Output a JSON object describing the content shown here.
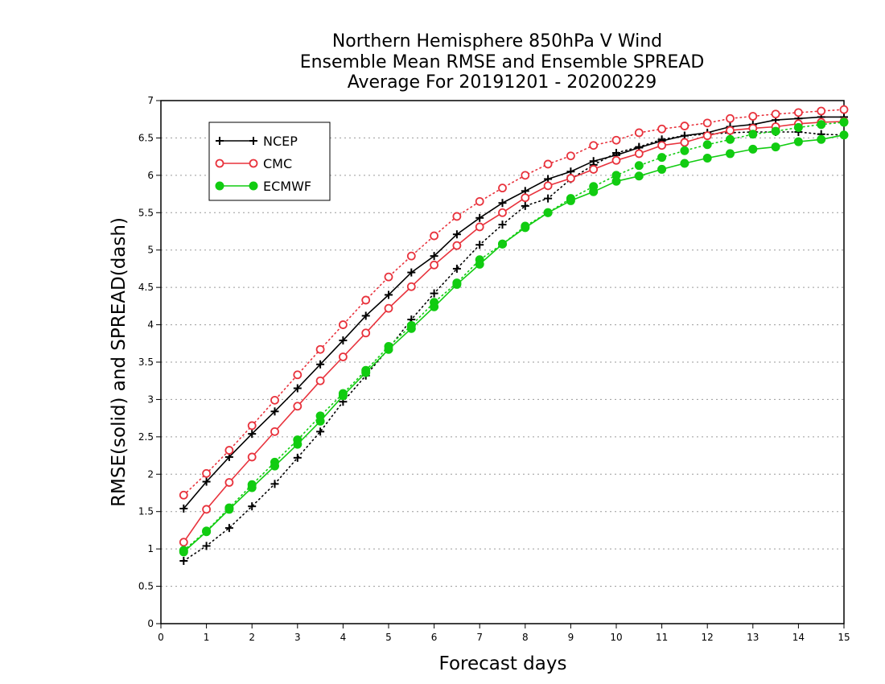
{
  "chart_data": {
    "type": "line",
    "title_lines": [
      "Northern Hemisphere 850hPa V Wind",
      "Ensemble Mean RMSE and Ensemble SPREAD",
      "Average For 20191201 - 20200229"
    ],
    "xlabel": "Forecast days",
    "ylabel": "RMSE(solid) and SPREAD(dash)",
    "xlim": [
      0,
      15
    ],
    "ylim": [
      0,
      7
    ],
    "xticks": [
      "0",
      "1",
      "2",
      "3",
      "4",
      "5",
      "6",
      "7",
      "8",
      "9",
      "10",
      "11",
      "12",
      "13",
      "14",
      "15"
    ],
    "yticks": [
      "0",
      "0.5",
      "1",
      "1.5",
      "2",
      "2.5",
      "3",
      "3.5",
      "4",
      "4.5",
      "5",
      "5.5",
      "6",
      "6.5",
      "7"
    ],
    "grid": "horizontal dotted",
    "legend_position": "top-left",
    "x": [
      0.5,
      1,
      1.5,
      2,
      2.5,
      3,
      3.5,
      4,
      4.5,
      5,
      5.5,
      6,
      6.5,
      7,
      7.5,
      8,
      8.5,
      9,
      9.5,
      10,
      10.5,
      11,
      11.5,
      12,
      12.5,
      13,
      13.5,
      14,
      14.5,
      15
    ],
    "series": [
      {
        "name": "NCEP",
        "color": "#000000",
        "marker": "plus",
        "rmse": [
          1.54,
          1.9,
          2.23,
          2.54,
          2.84,
          3.15,
          3.47,
          3.79,
          4.12,
          4.4,
          4.7,
          4.92,
          5.21,
          5.43,
          5.63,
          5.79,
          5.95,
          6.05,
          6.19,
          6.27,
          6.37,
          6.46,
          6.53,
          6.57,
          6.65,
          6.68,
          6.74,
          6.76,
          6.78,
          6.78
        ],
        "spread": [
          0.84,
          1.04,
          1.28,
          1.57,
          1.87,
          2.22,
          2.57,
          2.97,
          3.32,
          3.68,
          4.07,
          4.42,
          4.75,
          5.07,
          5.34,
          5.59,
          5.69,
          5.95,
          6.14,
          6.3,
          6.38,
          6.48,
          6.53,
          6.55,
          6.57,
          6.58,
          6.58,
          6.58,
          6.55,
          6.54
        ]
      },
      {
        "name": "CMC",
        "color": "#e8323c",
        "marker": "open-circle",
        "rmse": [
          1.09,
          1.53,
          1.89,
          2.23,
          2.57,
          2.91,
          3.25,
          3.57,
          3.89,
          4.22,
          4.51,
          4.8,
          5.06,
          5.31,
          5.5,
          5.7,
          5.86,
          5.96,
          6.08,
          6.2,
          6.29,
          6.4,
          6.44,
          6.53,
          6.6,
          6.63,
          6.65,
          6.69,
          6.71,
          6.72
        ],
        "spread": [
          1.72,
          2.01,
          2.32,
          2.65,
          2.99,
          3.33,
          3.67,
          4.0,
          4.33,
          4.64,
          4.92,
          5.19,
          5.45,
          5.65,
          5.83,
          6.0,
          6.15,
          6.26,
          6.4,
          6.47,
          6.57,
          6.62,
          6.66,
          6.7,
          6.76,
          6.79,
          6.82,
          6.84,
          6.86,
          6.88
        ]
      },
      {
        "name": "ECMWF",
        "color": "#11cc11",
        "marker": "filled-circle",
        "rmse": [
          0.96,
          1.23,
          1.53,
          1.82,
          2.11,
          2.4,
          2.71,
          3.05,
          3.36,
          3.67,
          3.95,
          4.24,
          4.54,
          4.81,
          5.08,
          5.3,
          5.5,
          5.66,
          5.78,
          5.92,
          5.99,
          6.08,
          6.16,
          6.23,
          6.29,
          6.35,
          6.38,
          6.45,
          6.48,
          6.54
        ],
        "spread": [
          0.98,
          1.24,
          1.55,
          1.86,
          2.16,
          2.46,
          2.78,
          3.08,
          3.39,
          3.71,
          3.99,
          4.3,
          4.56,
          4.87,
          5.08,
          5.32,
          5.5,
          5.69,
          5.85,
          6.0,
          6.13,
          6.24,
          6.33,
          6.41,
          6.48,
          6.55,
          6.59,
          6.64,
          6.68,
          6.71
        ]
      }
    ]
  }
}
